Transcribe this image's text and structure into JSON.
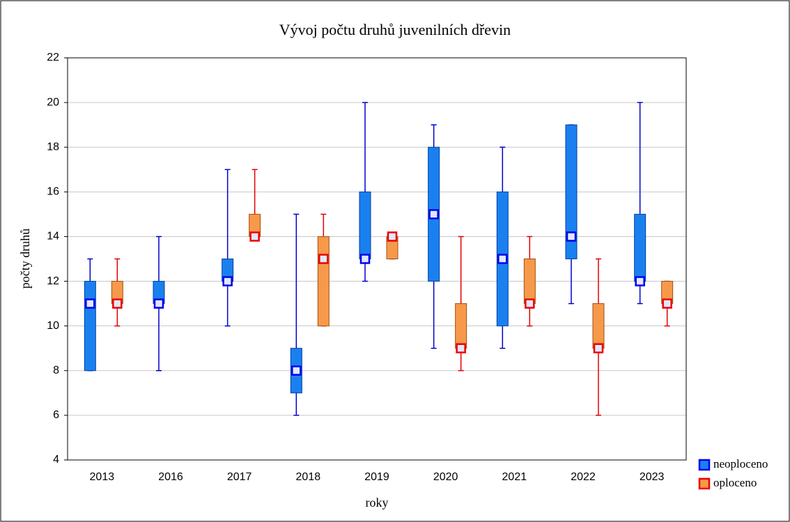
{
  "chart_data": {
    "type": "box",
    "title": "Vývoj počtu druhů juvenilních dřevin",
    "x_label": "roky",
    "y_label": "počty druhů",
    "categories": [
      "2013",
      "2016",
      "2017",
      "2018",
      "2019",
      "2020",
      "2021",
      "2022",
      "2023"
    ],
    "ylim": [
      4,
      22
    ],
    "yticks": [
      4,
      6,
      8,
      10,
      12,
      14,
      16,
      18,
      20,
      22
    ],
    "grid": true,
    "legend": "bottom-right",
    "series": [
      {
        "name": "neoploceno",
        "color": "#1a80f0",
        "line_color": "#0000cc",
        "min": [
          8,
          8,
          10,
          6,
          12,
          9,
          9,
          11,
          11
        ],
        "q1": [
          8,
          11,
          12,
          7,
          13,
          12,
          10,
          13,
          12
        ],
        "median": [
          11,
          11,
          12,
          8,
          13,
          15,
          13,
          14,
          12
        ],
        "q3": [
          12,
          12,
          13,
          9,
          16,
          18,
          16,
          19,
          15
        ],
        "max": [
          13,
          14,
          17,
          15,
          20,
          19,
          18,
          19,
          20
        ]
      },
      {
        "name": "oploceno",
        "color": "#f7994a",
        "line_color": "#e00000",
        "min": [
          10,
          null,
          14,
          10,
          13,
          8,
          10,
          6,
          10
        ],
        "q1": [
          11,
          null,
          14,
          10,
          13,
          9,
          11,
          9,
          11
        ],
        "median": [
          11,
          null,
          14,
          13,
          14,
          9,
          11,
          9,
          11
        ],
        "q3": [
          12,
          null,
          15,
          14,
          14,
          11,
          13,
          11,
          12
        ],
        "max": [
          13,
          null,
          17,
          15,
          14,
          14,
          14,
          13,
          12
        ]
      }
    ]
  }
}
